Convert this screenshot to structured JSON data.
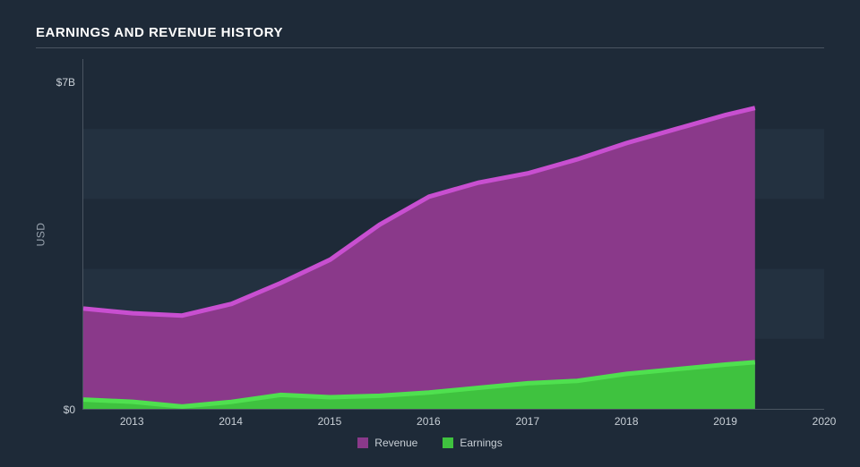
{
  "chart": {
    "type": "area",
    "title": "EARNINGS AND REVENUE HISTORY",
    "background_color": "#1e2a38",
    "band_color": "#233140",
    "grid_line_color": "#4a5561",
    "text_color": "#c8cfd6",
    "title_color": "#ffffff",
    "title_fontsize": 15,
    "label_fontsize": 12,
    "y_axis": {
      "label": "USD",
      "min": 0,
      "max": 7.5,
      "ticks": [
        {
          "value": 0,
          "label": "$0"
        },
        {
          "value": 7,
          "label": "$7B"
        }
      ]
    },
    "x_axis": {
      "min": 2012.5,
      "max": 2020,
      "ticks": [
        2013,
        2014,
        2015,
        2016,
        2017,
        2018,
        2019,
        2020
      ],
      "data_end": 2019.3
    },
    "series": [
      {
        "name": "Revenue",
        "color": "#8a398a",
        "stroke": "#c84fd0",
        "stroke_width": 2,
        "points": [
          {
            "x": 2012.5,
            "y": 2.15
          },
          {
            "x": 2013.0,
            "y": 2.05
          },
          {
            "x": 2013.5,
            "y": 2.0
          },
          {
            "x": 2014.0,
            "y": 2.25
          },
          {
            "x": 2014.5,
            "y": 2.7
          },
          {
            "x": 2015.0,
            "y": 3.2
          },
          {
            "x": 2015.5,
            "y": 3.95
          },
          {
            "x": 2016.0,
            "y": 4.55
          },
          {
            "x": 2016.5,
            "y": 4.85
          },
          {
            "x": 2017.0,
            "y": 5.05
          },
          {
            "x": 2017.5,
            "y": 5.35
          },
          {
            "x": 2018.0,
            "y": 5.7
          },
          {
            "x": 2018.5,
            "y": 6.0
          },
          {
            "x": 2019.0,
            "y": 6.3
          },
          {
            "x": 2019.3,
            "y": 6.45
          }
        ]
      },
      {
        "name": "Earnings",
        "color": "#3fc23f",
        "stroke": "#4fe04f",
        "stroke_width": 2,
        "points": [
          {
            "x": 2012.5,
            "y": 0.2
          },
          {
            "x": 2013.0,
            "y": 0.15
          },
          {
            "x": 2013.5,
            "y": 0.05
          },
          {
            "x": 2014.0,
            "y": 0.15
          },
          {
            "x": 2014.5,
            "y": 0.3
          },
          {
            "x": 2015.0,
            "y": 0.25
          },
          {
            "x": 2015.5,
            "y": 0.28
          },
          {
            "x": 2016.0,
            "y": 0.35
          },
          {
            "x": 2016.5,
            "y": 0.45
          },
          {
            "x": 2017.0,
            "y": 0.55
          },
          {
            "x": 2017.5,
            "y": 0.6
          },
          {
            "x": 2018.0,
            "y": 0.75
          },
          {
            "x": 2018.5,
            "y": 0.85
          },
          {
            "x": 2019.0,
            "y": 0.95
          },
          {
            "x": 2019.3,
            "y": 1.0
          }
        ]
      }
    ],
    "legend": {
      "items": [
        {
          "label": "Revenue",
          "color": "#8a398a"
        },
        {
          "label": "Earnings",
          "color": "#3fc23f"
        }
      ]
    }
  }
}
